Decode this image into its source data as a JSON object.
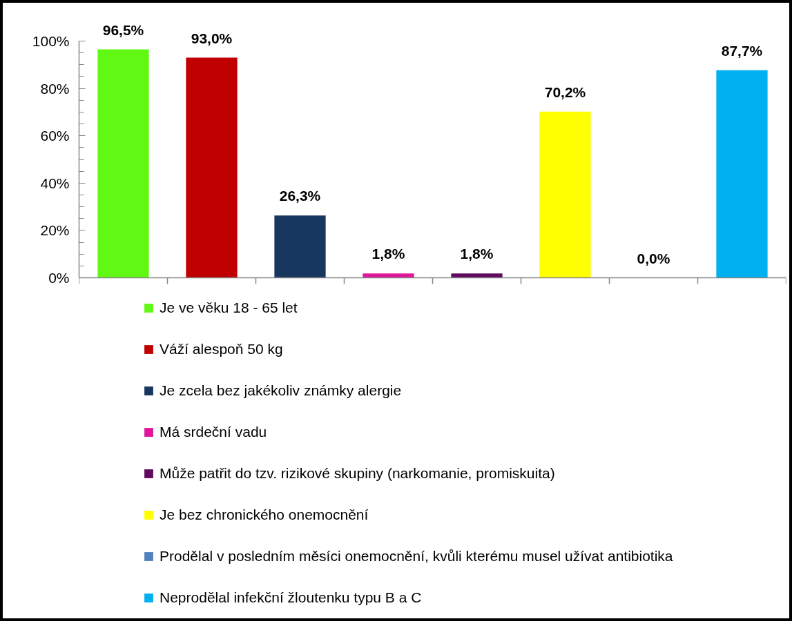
{
  "chart_data": {
    "type": "bar",
    "categories": [
      null,
      null,
      null,
      null,
      null,
      null,
      null,
      null
    ],
    "series": [
      {
        "name": "Je ve věku 18 - 65 let",
        "color": "#61f914",
        "values": [
          96.5,
          null,
          null,
          null,
          null,
          null,
          null,
          null
        ],
        "value_labels": [
          "96,5%",
          null,
          null,
          null,
          null,
          null,
          null,
          null
        ]
      },
      {
        "name": "Váží alespoň 50 kg",
        "color": "#c00000",
        "values": [
          null,
          93.0,
          null,
          null,
          null,
          null,
          null,
          null
        ],
        "value_labels": [
          null,
          "93,0%",
          null,
          null,
          null,
          null,
          null,
          null
        ]
      },
      {
        "name": "Je zcela bez jakékoliv známky alergie",
        "color": "#17375e",
        "values": [
          null,
          null,
          26.3,
          null,
          null,
          null,
          null,
          null
        ],
        "value_labels": [
          null,
          null,
          "26,3%",
          null,
          null,
          null,
          null,
          null
        ]
      },
      {
        "name": "Má srdeční vadu",
        "color": "#e0169b",
        "values": [
          null,
          null,
          null,
          1.8,
          null,
          null,
          null,
          null
        ],
        "value_labels": [
          null,
          null,
          null,
          "1,8%",
          null,
          null,
          null,
          null
        ]
      },
      {
        "name": "Může patřit do tzv. rizikové skupiny (narkomanie, promiskuita)",
        "color": "#5f0a5f",
        "values": [
          null,
          null,
          null,
          null,
          1.8,
          null,
          null,
          null
        ],
        "value_labels": [
          null,
          null,
          null,
          null,
          "1,8%",
          null,
          null,
          null
        ]
      },
      {
        "name": "Je bez chronického onemocnění",
        "color": "#ffff00",
        "values": [
          null,
          null,
          null,
          null,
          null,
          70.2,
          null,
          null
        ],
        "value_labels": [
          null,
          null,
          null,
          null,
          null,
          "70,2%",
          null,
          null
        ]
      },
      {
        "name": "Prodělal v posledním měsíci onemocnění, kvůli kterému musel užívat antibiotika",
        "color": "#4f81bd",
        "values": [
          null,
          null,
          null,
          null,
          null,
          null,
          0.0,
          null
        ],
        "value_labels": [
          null,
          null,
          null,
          null,
          null,
          null,
          "0,0%",
          null
        ]
      },
      {
        "name": "Neprodělal infekční žloutenku typu B a C",
        "color": "#00b0f0",
        "values": [
          null,
          null,
          null,
          null,
          null,
          null,
          null,
          87.7
        ],
        "value_labels": [
          null,
          null,
          null,
          null,
          null,
          null,
          null,
          "87,7%"
        ]
      }
    ],
    "ylim": [
      0,
      100
    ],
    "yticks": [
      {
        "value": 0,
        "label": "0%"
      },
      {
        "value": 20,
        "label": "20%"
      },
      {
        "value": 40,
        "label": "40%"
      },
      {
        "value": 60,
        "label": "60%"
      },
      {
        "value": 80,
        "label": "80%"
      },
      {
        "value": 100,
        "label": "100%"
      }
    ],
    "tick_labels": "y",
    "legend": "bottom"
  }
}
